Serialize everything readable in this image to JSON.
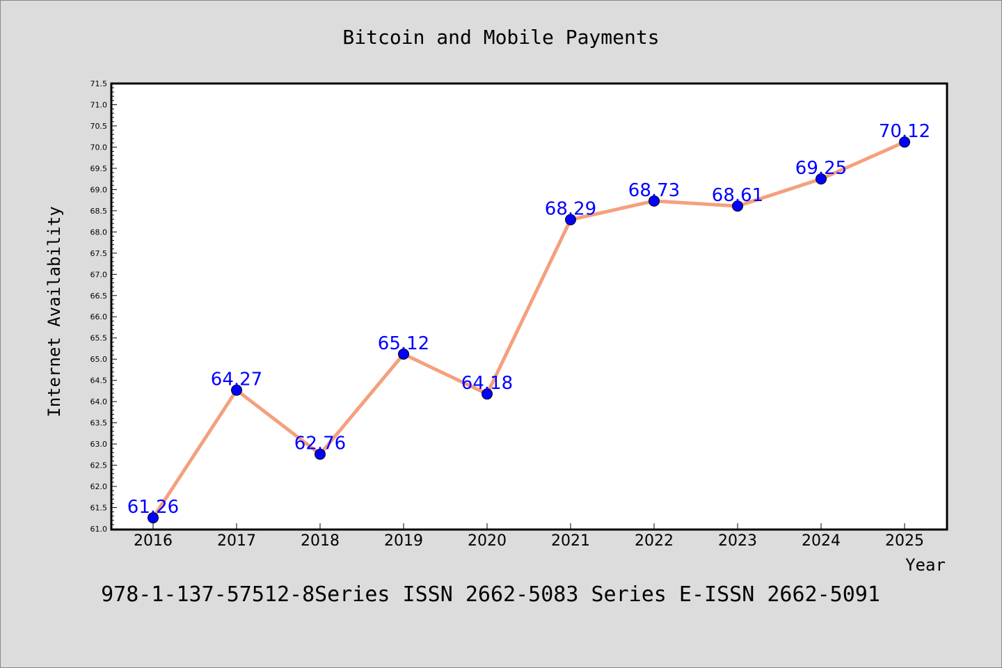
{
  "chart_data": {
    "type": "line",
    "title": "Bitcoin and Mobile Payments",
    "xlabel": "Year",
    "ylabel": "Internet Availability",
    "categories": [
      "2016",
      "2017",
      "2018",
      "2019",
      "2020",
      "2021",
      "2022",
      "2023",
      "2024",
      "2025"
    ],
    "series": [
      {
        "values": [
          61.26,
          64.27,
          62.76,
          65.12,
          64.18,
          68.29,
          68.73,
          68.61,
          69.25,
          70.12
        ]
      }
    ],
    "value_labels": [
      "61.26",
      "64.27",
      "62.76",
      "65.12",
      "64.18",
      "68.29",
      "68.73",
      "68.61",
      "69.25",
      "70.12"
    ],
    "ylim": [
      61.0,
      71.5
    ],
    "yticks": [
      "61.0",
      "61.5",
      "62.0",
      "62.5",
      "63.0",
      "63.5",
      "64.0",
      "64.5",
      "65.0",
      "65.5",
      "66.0",
      "66.5",
      "67.0",
      "67.5",
      "68.0",
      "68.5",
      "69.0",
      "69.5",
      "70.0",
      "70.5",
      "71.0",
      "71.5"
    ],
    "grid": false,
    "line_color": "#f4a07e",
    "marker_color": "#0000ff",
    "label_color": "#0000ff"
  },
  "footer": "978-1-137-57512-8Series ISSN 2662-5083 Series E-ISSN 2662-5091"
}
